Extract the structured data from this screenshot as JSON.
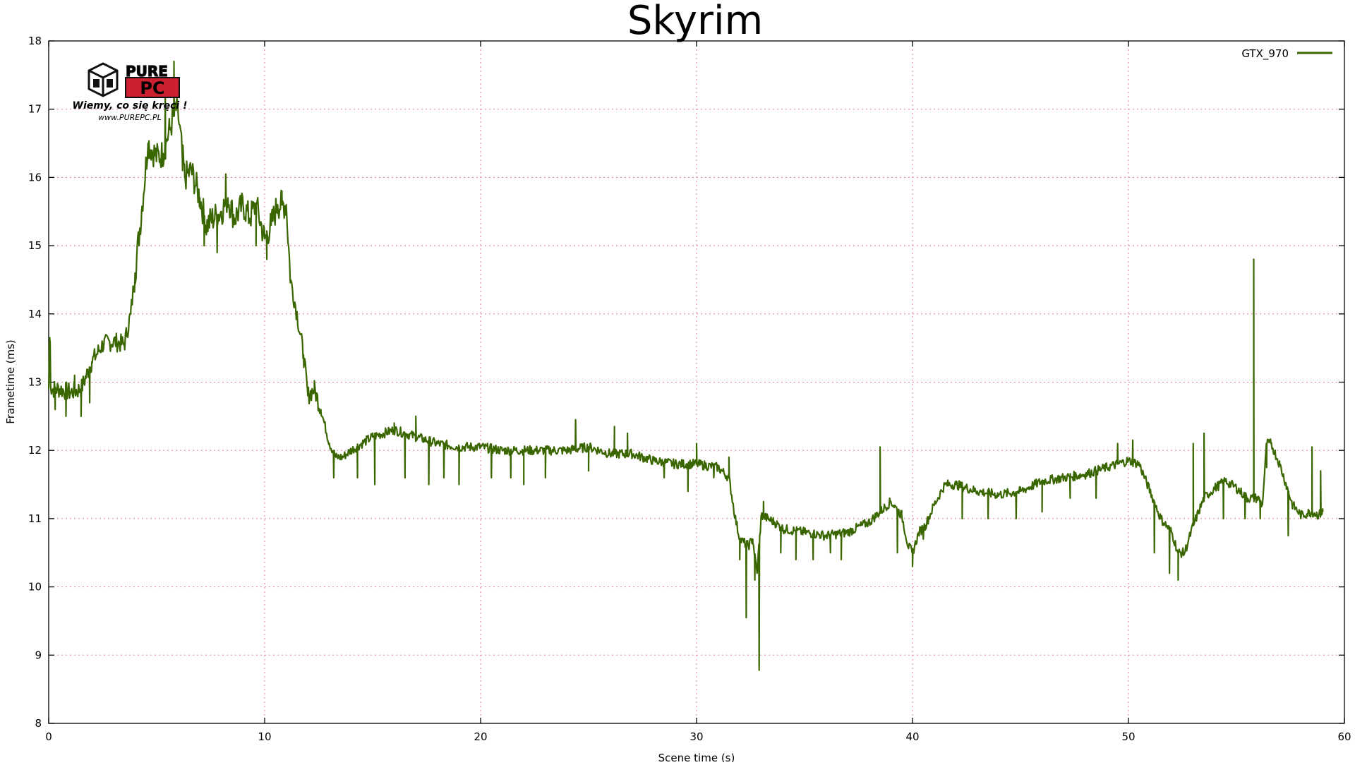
{
  "chart_data": {
    "type": "line",
    "title": "Skyrim",
    "xlabel": "Scene time (s)",
    "ylabel": "Frametime (ms)",
    "xlim": [
      0,
      60
    ],
    "ylim": [
      8,
      18
    ],
    "x_ticks": [
      "0",
      "10",
      "20",
      "30",
      "40",
      "50",
      "60"
    ],
    "y_ticks": [
      "8",
      "9",
      "10",
      "11",
      "12",
      "13",
      "14",
      "15",
      "16",
      "17",
      "18"
    ],
    "grid": true,
    "legend_position": "top-right",
    "series": [
      {
        "name": "GTX_970",
        "color": "#3a6600",
        "x": [
          0,
          0.05,
          0.1,
          0.5,
          1.0,
          1.5,
          2.0,
          2.5,
          3.0,
          3.5,
          3.8,
          4.0,
          4.3,
          4.6,
          5.0,
          5.3,
          5.6,
          5.9,
          6.0,
          6.3,
          6.6,
          7.0,
          7.3,
          7.6,
          8.0,
          8.3,
          8.6,
          9.0,
          9.3,
          9.6,
          10.0,
          10.3,
          10.6,
          11.0,
          11.2,
          11.5,
          11.8,
          12.0,
          12.3,
          12.6,
          13.0,
          13.3,
          13.6,
          14.0,
          15.0,
          16.0,
          17.0,
          18.0,
          19.0,
          20.0,
          21.0,
          22.0,
          23.0,
          24.0,
          25.0,
          26.0,
          27.0,
          28.0,
          29.0,
          30.0,
          31.0,
          31.5,
          31.8,
          32.0,
          32.2,
          32.4,
          32.6,
          32.8,
          33.0,
          33.3,
          33.6,
          34.0,
          35.0,
          36.0,
          37.0,
          38.0,
          38.5,
          39.0,
          39.5,
          39.8,
          40.0,
          40.3,
          40.6,
          41.0,
          41.5,
          42.0,
          43.0,
          44.0,
          45.0,
          46.0,
          47.0,
          48.0,
          49.0,
          50.0,
          50.5,
          51.0,
          51.5,
          52.0,
          52.3,
          52.6,
          53.0,
          53.5,
          54.0,
          54.5,
          55.0,
          55.5,
          55.8,
          56.0,
          56.2,
          56.4,
          56.6,
          57.0,
          57.3,
          57.6,
          58.0,
          58.5,
          58.8,
          59.0
        ],
        "y": [
          12.9,
          13.6,
          12.9,
          12.9,
          12.85,
          12.9,
          13.3,
          13.55,
          13.6,
          13.55,
          14.0,
          14.6,
          15.5,
          16.5,
          16.3,
          16.35,
          16.7,
          17.0,
          16.9,
          16.0,
          16.1,
          15.7,
          15.3,
          15.4,
          15.5,
          15.7,
          15.4,
          15.6,
          15.4,
          15.6,
          15.1,
          15.3,
          15.6,
          15.6,
          14.5,
          14.0,
          13.4,
          12.8,
          12.9,
          12.6,
          12.1,
          11.9,
          11.9,
          12.0,
          12.2,
          12.3,
          12.2,
          12.1,
          12.05,
          12.05,
          12.0,
          12.0,
          12.0,
          12.0,
          12.05,
          11.95,
          11.95,
          11.85,
          11.8,
          11.8,
          11.75,
          11.6,
          11.0,
          10.7,
          10.65,
          10.6,
          10.7,
          10.2,
          11.05,
          11.0,
          10.95,
          10.85,
          10.8,
          10.75,
          10.8,
          10.95,
          11.1,
          11.25,
          11.05,
          10.6,
          10.5,
          10.8,
          10.9,
          11.2,
          11.5,
          11.5,
          11.4,
          11.35,
          11.4,
          11.55,
          11.6,
          11.65,
          11.75,
          11.85,
          11.8,
          11.4,
          11.0,
          10.8,
          10.5,
          10.5,
          10.9,
          11.3,
          11.45,
          11.55,
          11.45,
          11.3,
          11.3,
          11.3,
          11.2,
          12.1,
          12.1,
          11.8,
          11.5,
          11.2,
          11.05,
          11.1,
          11.05,
          11.1
        ],
        "spikes": [
          {
            "x": 0.05,
            "y": 13.65
          },
          {
            "x": 0.3,
            "y": 12.6
          },
          {
            "x": 0.8,
            "y": 12.5
          },
          {
            "x": 1.2,
            "y": 13.1
          },
          {
            "x": 1.5,
            "y": 12.5
          },
          {
            "x": 1.9,
            "y": 12.7
          },
          {
            "x": 5.4,
            "y": 17.4
          },
          {
            "x": 5.8,
            "y": 17.7
          },
          {
            "x": 6.2,
            "y": 16.1
          },
          {
            "x": 7.2,
            "y": 15.0
          },
          {
            "x": 7.8,
            "y": 14.9
          },
          {
            "x": 8.2,
            "y": 16.05
          },
          {
            "x": 9.6,
            "y": 15.0
          },
          {
            "x": 10.1,
            "y": 14.8
          },
          {
            "x": 10.8,
            "y": 15.8
          },
          {
            "x": 13.2,
            "y": 11.6
          },
          {
            "x": 14.3,
            "y": 11.6
          },
          {
            "x": 15.1,
            "y": 11.5
          },
          {
            "x": 16.0,
            "y": 12.4
          },
          {
            "x": 16.5,
            "y": 11.6
          },
          {
            "x": 17.0,
            "y": 12.5
          },
          {
            "x": 17.6,
            "y": 11.5
          },
          {
            "x": 18.3,
            "y": 11.6
          },
          {
            "x": 19.0,
            "y": 11.5
          },
          {
            "x": 20.5,
            "y": 11.6
          },
          {
            "x": 21.4,
            "y": 11.6
          },
          {
            "x": 22.0,
            "y": 11.5
          },
          {
            "x": 23.0,
            "y": 11.6
          },
          {
            "x": 24.4,
            "y": 12.45
          },
          {
            "x": 25.0,
            "y": 11.7
          },
          {
            "x": 26.2,
            "y": 12.35
          },
          {
            "x": 26.8,
            "y": 12.25
          },
          {
            "x": 28.5,
            "y": 11.6
          },
          {
            "x": 29.6,
            "y": 11.4
          },
          {
            "x": 30.0,
            "y": 12.1
          },
          {
            "x": 30.8,
            "y": 11.6
          },
          {
            "x": 31.5,
            "y": 11.9
          },
          {
            "x": 32.0,
            "y": 10.4
          },
          {
            "x": 32.3,
            "y": 9.55
          },
          {
            "x": 32.7,
            "y": 10.1
          },
          {
            "x": 32.9,
            "y": 8.78
          },
          {
            "x": 33.1,
            "y": 11.25
          },
          {
            "x": 33.9,
            "y": 10.5
          },
          {
            "x": 34.6,
            "y": 10.4
          },
          {
            "x": 35.4,
            "y": 10.4
          },
          {
            "x": 36.2,
            "y": 10.5
          },
          {
            "x": 36.7,
            "y": 10.4
          },
          {
            "x": 38.5,
            "y": 12.05
          },
          {
            "x": 39.3,
            "y": 10.5
          },
          {
            "x": 40.0,
            "y": 10.3
          },
          {
            "x": 40.5,
            "y": 10.7
          },
          {
            "x": 42.3,
            "y": 11.0
          },
          {
            "x": 43.5,
            "y": 11.0
          },
          {
            "x": 44.8,
            "y": 11.0
          },
          {
            "x": 46.0,
            "y": 11.1
          },
          {
            "x": 47.3,
            "y": 11.3
          },
          {
            "x": 48.5,
            "y": 11.3
          },
          {
            "x": 49.5,
            "y": 12.1
          },
          {
            "x": 50.2,
            "y": 12.15
          },
          {
            "x": 51.2,
            "y": 10.5
          },
          {
            "x": 51.9,
            "y": 10.2
          },
          {
            "x": 52.3,
            "y": 10.1
          },
          {
            "x": 53.0,
            "y": 12.1
          },
          {
            "x": 53.5,
            "y": 12.25
          },
          {
            "x": 54.4,
            "y": 11.0
          },
          {
            "x": 55.4,
            "y": 11.0
          },
          {
            "x": 55.8,
            "y": 14.8
          },
          {
            "x": 56.1,
            "y": 11.0
          },
          {
            "x": 56.4,
            "y": 11.75
          },
          {
            "x": 57.4,
            "y": 10.75
          },
          {
            "x": 58.5,
            "y": 12.05
          },
          {
            "x": 58.9,
            "y": 11.7
          }
        ]
      }
    ]
  },
  "logo": {
    "brand_top": "PURE",
    "brand_bottom": "PC",
    "tagline": "Wiemy, co się kręci !",
    "url": "www.PUREPC.PL"
  }
}
